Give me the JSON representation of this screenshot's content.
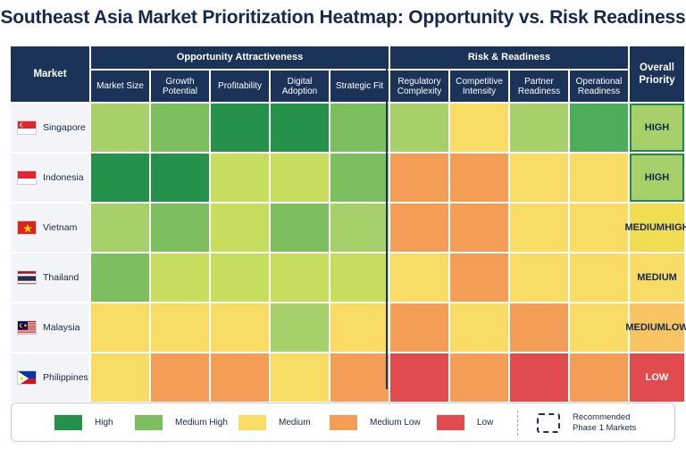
{
  "title": "Southeast Asia Market Prioritization Heatmap: Opportunity vs. Risk Readiness",
  "headers": {
    "market": "Market",
    "opportunity_group": "Opportunity Attractiveness",
    "risk_group": "Risk & Readiness",
    "priority": "Overall Priority",
    "columns": [
      "Market Size",
      "Growth Potential",
      "Profitability",
      "Digital Adoption",
      "Strategic Fit",
      "Regulatory Complexity",
      "Competitive Intensity",
      "Partner Readiness",
      "Operational Readiness"
    ]
  },
  "chart_data": {
    "type": "heatmap",
    "title": "Southeast Asia Market Prioritization Heatmap: Opportunity vs. Risk Readiness",
    "column_groups": [
      {
        "name": "Opportunity Attractiveness",
        "columns": [
          "Market Size",
          "Growth Potential",
          "Profitability",
          "Digital Adoption",
          "Strategic Fit"
        ]
      },
      {
        "name": "Risk & Readiness",
        "columns": [
          "Regulatory Complexity",
          "Competitive Intensity",
          "Partner Readiness",
          "Operational Readiness"
        ]
      }
    ],
    "scale": [
      "High",
      "Medium High",
      "Medium",
      "Medium Low",
      "Low"
    ],
    "rows": [
      {
        "market": "Singapore",
        "flag": "singapore",
        "ratings": [
          "Medium High",
          "Medium High",
          "High",
          "High",
          "Medium High",
          "Medium High",
          "Medium",
          "Medium High",
          "High"
        ],
        "priority": "HIGH"
      },
      {
        "market": "Indonesia",
        "flag": "indonesia",
        "ratings": [
          "High",
          "High",
          "Medium High",
          "Medium High",
          "Medium High",
          "Medium Low",
          "Medium Low",
          "Medium",
          "Medium"
        ],
        "priority": "HIGH"
      },
      {
        "market": "Vietnam",
        "flag": "vietnam",
        "ratings": [
          "Medium High",
          "Medium High",
          "Medium High",
          "Medium High",
          "Medium High",
          "Medium Low",
          "Medium Low",
          "Medium",
          "Medium"
        ],
        "priority": "MEDIUM HIGH"
      },
      {
        "market": "Thailand",
        "flag": "thailand",
        "ratings": [
          "Medium High",
          "Medium High",
          "Medium High",
          "Medium High",
          "Medium High",
          "Medium",
          "Medium Low",
          "Medium",
          "Medium"
        ],
        "priority": "MEDIUM"
      },
      {
        "market": "Malaysia",
        "flag": "malaysia",
        "ratings": [
          "Medium",
          "Medium",
          "Medium",
          "Medium High",
          "Medium",
          "Medium Low",
          "Medium",
          "Medium Low",
          "Medium"
        ],
        "priority": "MEDIUM LOW"
      },
      {
        "market": "Philippines",
        "flag": "philippines",
        "ratings": [
          "Medium",
          "Medium Low",
          "Medium Low",
          "Medium",
          "Medium Low",
          "Low",
          "Medium Low",
          "Low",
          "Medium Low"
        ],
        "priority": "LOW"
      }
    ],
    "shades": {
      "Singapore": [
        "c-mh2",
        "c-mh",
        "c-high",
        "c-high",
        "c-mh",
        "c-mh2",
        "c-m",
        "c-mh2",
        "c-hg"
      ],
      "Indonesia": [
        "c-high",
        "c-high",
        "c-m1",
        "c-m1",
        "c-mh",
        "c-ml",
        "c-ml",
        "c-m",
        "c-m"
      ],
      "Vietnam": [
        "c-mh2",
        "c-mh",
        "c-m1",
        "c-mh",
        "c-mh2",
        "c-ml",
        "c-ml",
        "c-m",
        "c-m"
      ],
      "Thailand": [
        "c-mh",
        "c-m1",
        "c-m1",
        "c-m1",
        "c-m1",
        "c-m",
        "c-ml",
        "c-m",
        "c-m"
      ],
      "Malaysia": [
        "c-m",
        "c-m",
        "c-m",
        "c-mh2",
        "c-m",
        "c-ml",
        "c-m",
        "c-ml",
        "c-m"
      ],
      "Philippines": [
        "c-m",
        "c-ml",
        "c-ml",
        "c-m",
        "c-ml",
        "c-low",
        "c-ml",
        "c-low",
        "c-ml"
      ]
    },
    "priority_colors": {
      "HIGH": "p-high",
      "MEDIUM HIGH": "p-mh",
      "MEDIUM": "p-m",
      "MEDIUM LOW": "p-ml",
      "LOW": "p-low"
    }
  },
  "legend": {
    "items": [
      {
        "label": "High",
        "color": "#26914a"
      },
      {
        "label": "Medium High",
        "color": "#7dbf5e"
      },
      {
        "label": "Medium",
        "color": "#f9dc65"
      },
      {
        "label": "Medium Low",
        "color": "#f49d57"
      },
      {
        "label": "Low",
        "color": "#e24b4e"
      }
    ],
    "recommended_line1": "Recommended",
    "recommended_line2": "Phase 1 Markets"
  }
}
